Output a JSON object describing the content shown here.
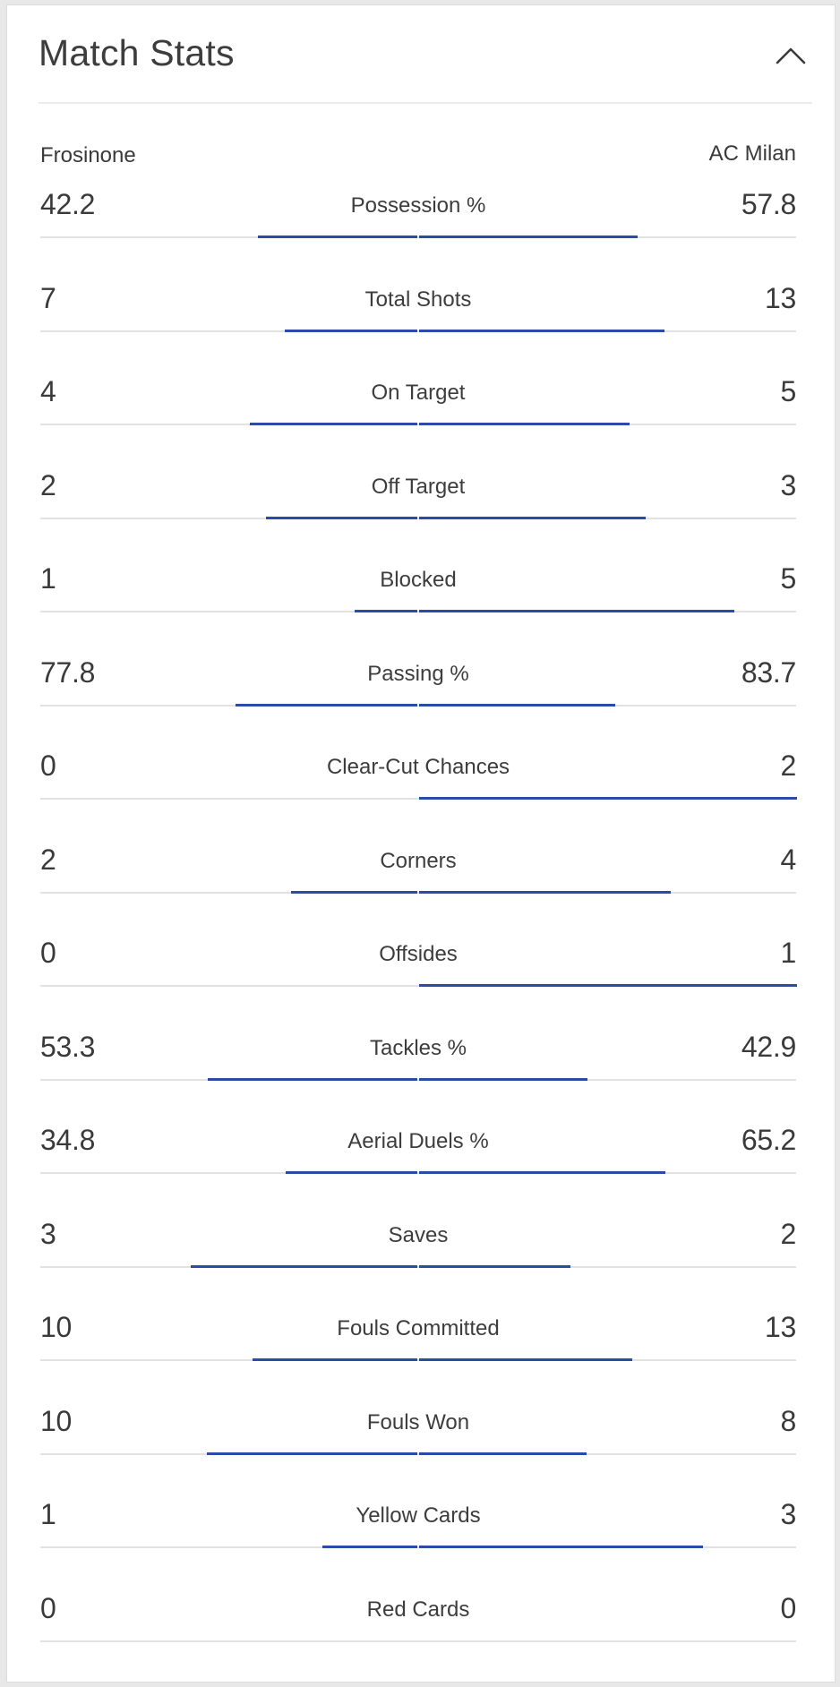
{
  "title": "Match Stats",
  "teams": {
    "home": "Frosinone",
    "away": "AC Milan"
  },
  "colors": {
    "bar": "#2a4ba8",
    "baseline": "#e2e2e2",
    "text": "#3a3a3a"
  },
  "stats": [
    {
      "label": "Possession %",
      "home": "42.2",
      "away": "57.8",
      "home_share": 0.422,
      "away_share": 0.578
    },
    {
      "label": "Total Shots",
      "home": "7",
      "away": "13",
      "home_share": 0.35,
      "away_share": 0.65
    },
    {
      "label": "On Target",
      "home": "4",
      "away": "5",
      "home_share": 0.444,
      "away_share": 0.556
    },
    {
      "label": "Off Target",
      "home": "2",
      "away": "3",
      "home_share": 0.4,
      "away_share": 0.6
    },
    {
      "label": "Blocked",
      "home": "1",
      "away": "5",
      "home_share": 0.167,
      "away_share": 0.833
    },
    {
      "label": "Passing %",
      "home": "77.8",
      "away": "83.7",
      "home_share": 0.482,
      "away_share": 0.518
    },
    {
      "label": "Clear-Cut Chances",
      "home": "0",
      "away": "2",
      "home_share": 0,
      "away_share": 1
    },
    {
      "label": "Corners",
      "home": "2",
      "away": "4",
      "home_share": 0.333,
      "away_share": 0.667
    },
    {
      "label": "Offsides",
      "home": "0",
      "away": "1",
      "home_share": 0,
      "away_share": 1
    },
    {
      "label": "Tackles %",
      "home": "53.3",
      "away": "42.9",
      "home_share": 0.554,
      "away_share": 0.446
    },
    {
      "label": "Aerial Duels %",
      "home": "34.8",
      "away": "65.2",
      "home_share": 0.348,
      "away_share": 0.652
    },
    {
      "label": "Saves",
      "home": "3",
      "away": "2",
      "home_share": 0.6,
      "away_share": 0.4
    },
    {
      "label": "Fouls Committed",
      "home": "10",
      "away": "13",
      "home_share": 0.435,
      "away_share": 0.565
    },
    {
      "label": "Fouls Won",
      "home": "10",
      "away": "8",
      "home_share": 0.556,
      "away_share": 0.444
    },
    {
      "label": "Yellow Cards",
      "home": "1",
      "away": "3",
      "home_share": 0.25,
      "away_share": 0.75
    },
    {
      "label": "Red Cards",
      "home": "0",
      "away": "0",
      "home_share": 0,
      "away_share": 0
    }
  ]
}
